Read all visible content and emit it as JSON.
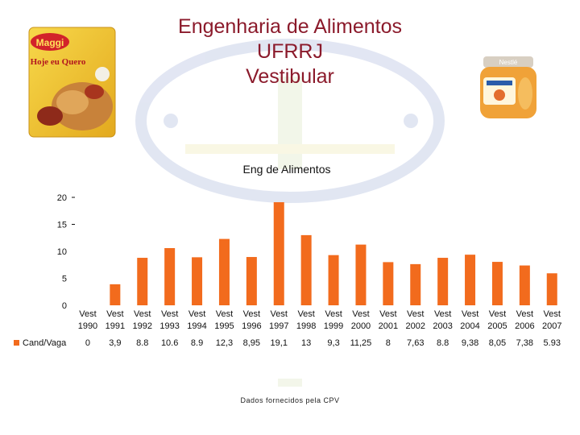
{
  "slide": {
    "title_line1": "Engenharia de Alimentos",
    "title_line2": "UFRRJ",
    "title_line3": "Vestibular",
    "source_note": "Dados fornecidos pela CPV",
    "title_color": "#8b1a2b"
  },
  "images": {
    "left_product_brand": "Maggi",
    "left_product_name": "Hoje eu Quero",
    "right_product_brand": "Nestlé"
  },
  "chart_data": {
    "type": "bar",
    "title": "Eng de Alimentos",
    "categories": [
      [
        "Vest",
        "1990"
      ],
      [
        "Vest",
        "1991"
      ],
      [
        "Vest",
        "1992"
      ],
      [
        "Vest",
        "1993"
      ],
      [
        "Vest",
        "1994"
      ],
      [
        "Vest",
        "1995"
      ],
      [
        "Vest",
        "1996"
      ],
      [
        "Vest",
        "1997"
      ],
      [
        "Vest",
        "1998"
      ],
      [
        "Vest",
        "1999"
      ],
      [
        "Vest",
        "2000"
      ],
      [
        "Vest",
        "2001"
      ],
      [
        "Vest",
        "2002"
      ],
      [
        "Vest",
        "2003"
      ],
      [
        "Vest",
        "2004"
      ],
      [
        "Vest",
        "2005"
      ],
      [
        "Vest",
        "2006"
      ],
      [
        "Vest",
        "2007"
      ]
    ],
    "series": [
      {
        "name": "Cand/Vaga",
        "color": "#f26b1d",
        "values": [
          0,
          3.9,
          8.8,
          10.6,
          8.9,
          12.3,
          8.95,
          19.1,
          13,
          9.3,
          11.25,
          8,
          7.63,
          8.8,
          9.38,
          8.05,
          7.38,
          5.93
        ],
        "labels": [
          "0",
          "3,9",
          "8.8",
          "10.6",
          "8.9",
          "12,3",
          "8,95",
          "19,1",
          "13",
          "9,3",
          "11,25",
          "8",
          "7,63",
          "8.8",
          "9,38",
          "8,05",
          "7,38",
          "5.93"
        ]
      }
    ],
    "y_ticks": [
      "0",
      "5",
      "10",
      "15",
      "20"
    ],
    "ylim": [
      0,
      20
    ],
    "grid": false,
    "legend": "data-table-left"
  }
}
